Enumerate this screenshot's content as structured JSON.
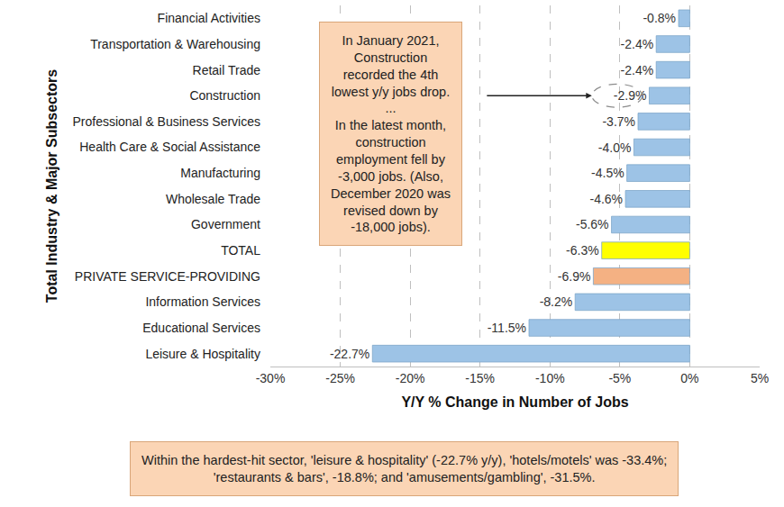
{
  "chart_data": {
    "type": "bar",
    "orientation": "horizontal",
    "categories": [
      "Financial Activities",
      "Transportation & Warehousing",
      "Retail Trade",
      "Construction",
      "Professional & Business Services",
      "Health Care & Social Assistance",
      "Manufacturing",
      "Wholesale Trade",
      "Government",
      "TOTAL",
      "PRIVATE SERVICE-PROVIDING",
      "Information Services",
      "Educational Services",
      "Leisure & Hospitality"
    ],
    "values": [
      -0.8,
      -2.4,
      -2.4,
      -2.9,
      -3.7,
      -4.0,
      -4.5,
      -4.6,
      -5.6,
      -6.3,
      -6.9,
      -8.2,
      -11.5,
      -22.7
    ],
    "value_labels": [
      "-0.8%",
      "-2.4%",
      "-2.4%",
      "-2.9%",
      "-3.7%",
      "-4.0%",
      "-4.5%",
      "-4.6%",
      "-5.6%",
      "-6.3%",
      "-6.9%",
      "-8.2%",
      "-11.5%",
      "-22.7%"
    ],
    "colors": [
      "#9DC3E6",
      "#9DC3E6",
      "#9DC3E6",
      "#9DC3E6",
      "#9DC3E6",
      "#9DC3E6",
      "#9DC3E6",
      "#9DC3E6",
      "#9DC3E6",
      "#FFFF00",
      "#F4B183",
      "#9DC3E6",
      "#9DC3E6",
      "#9DC3E6"
    ],
    "data_labels": true,
    "xlim": [
      -30,
      5
    ],
    "xticks": [
      {
        "value": -30,
        "label": "-30%"
      },
      {
        "value": -25,
        "label": "-25%"
      },
      {
        "value": -20,
        "label": "-20%"
      },
      {
        "value": -15,
        "label": "-15%"
      },
      {
        "value": -10,
        "label": "-10%"
      },
      {
        "value": -5,
        "label": "-5%"
      },
      {
        "value": 0,
        "label": "0%"
      },
      {
        "value": 5,
        "label": "5%"
      }
    ],
    "grid": true,
    "xlabel": "Y/Y % Change in Number of Jobs",
    "ylabel": "Total Industry & Major Subsectors",
    "annotations": [
      {
        "text": "In January 2021,\nConstruction\nrecorded the 4th\nlowest y/y jobs drop.\n...\nIn the latest month,\nconstruction\nemployment fell by\n-3,000 jobs. (Also,\nDecember 2020 was\nrevised down by\n-18,000 jobs).",
        "category": "Construction"
      },
      {
        "text": "Within the hardest-hit sector, 'leisure & hospitality' (-22.7% y/y), 'hotels/motels' was -33.4%;\n'restaurants & bars', -18.8%; and 'amusements/gambling', -31.5%."
      }
    ]
  }
}
